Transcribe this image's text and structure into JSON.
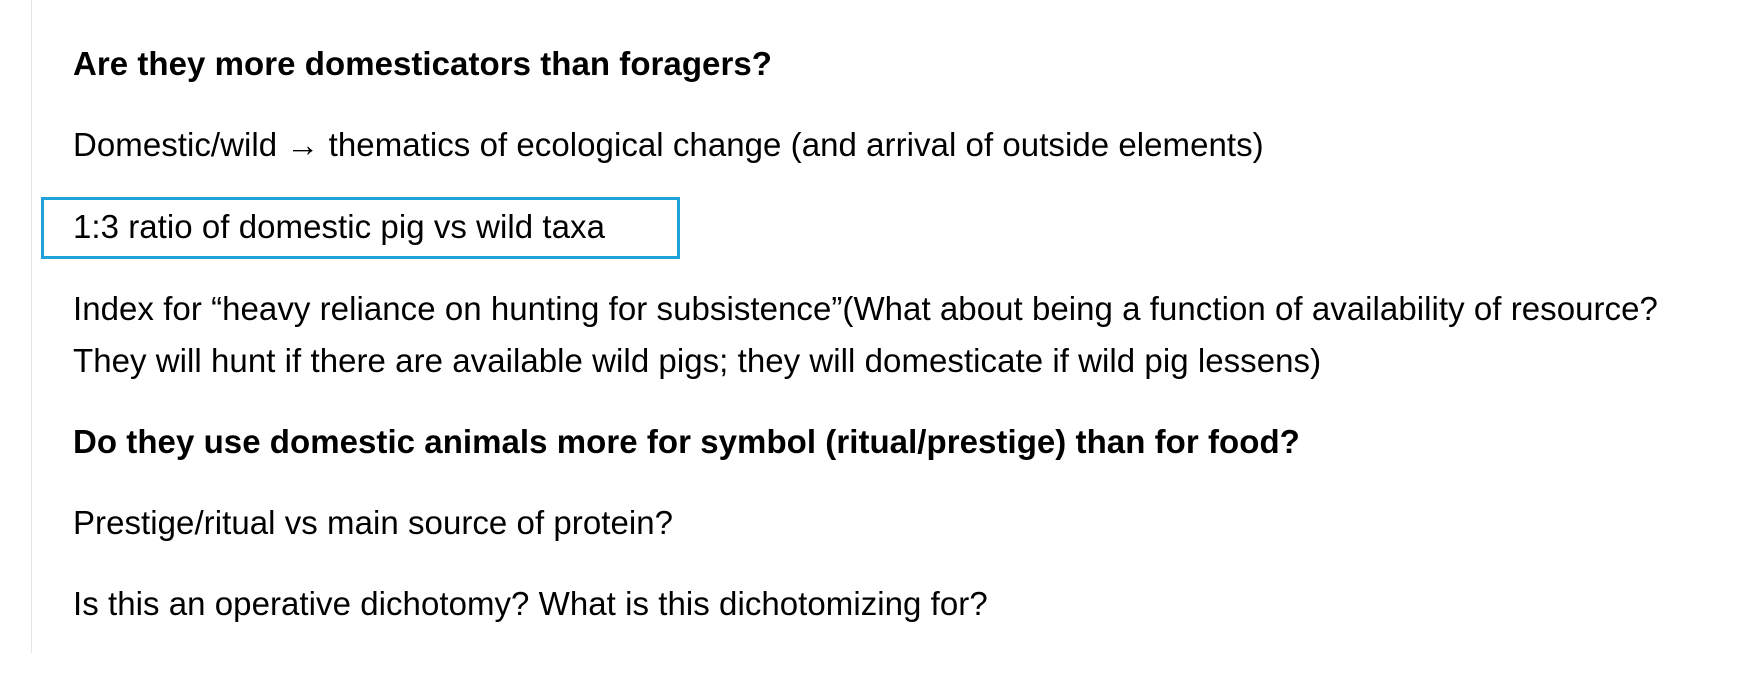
{
  "document": {
    "paragraphs": [
      {
        "text": "Are they more domesticators than foragers?",
        "bold": true
      },
      {
        "text": "Domestic/wild → thematics of ecological change (and arrival of outside elements)",
        "bold": false
      },
      {
        "text": "1:3 ratio of domestic pig vs wild taxa",
        "bold": false,
        "highlighted": true
      },
      {
        "text": "Index for “heavy reliance on hunting for subsistence”(What about being a function of availability of resource? They will hunt if there are available wild pigs; they will domesticate if wild pig lessens)",
        "bold": false
      },
      {
        "text": "Do they use domestic animals more for symbol (ritual/prestige) than for food?",
        "bold": true
      },
      {
        "text": "Prestige/ritual vs main source of protein?",
        "bold": false
      },
      {
        "text": "Is this an operative dichotomy? What is this dichotomizing for?",
        "bold": false
      }
    ]
  },
  "colors": {
    "highlight_border": "#1fa2da",
    "text": "#000000",
    "background": "#ffffff"
  }
}
